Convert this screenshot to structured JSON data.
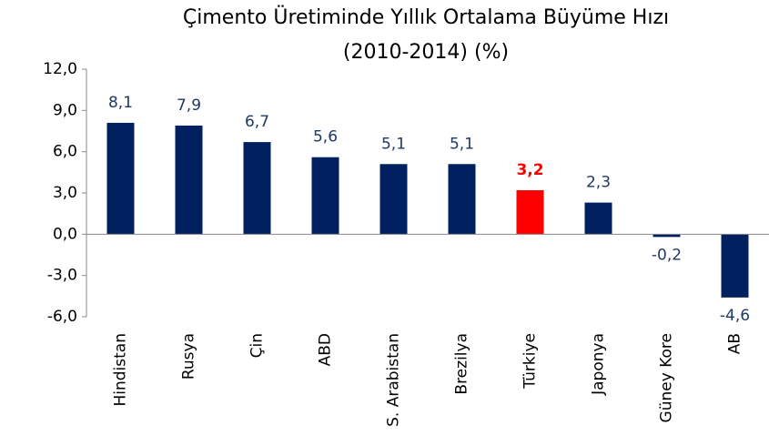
{
  "chart_data": {
    "type": "bar",
    "title": [
      "Çimento Üretiminde Yıllık Ortalama Büyüme Hızı",
      "(2010-2014) (%)"
    ],
    "categories": [
      "Hindistan",
      "Rusya",
      "Çin",
      "ABD",
      "S. Arabistan",
      "Brezilya",
      "Türkiye",
      "Japonya",
      "Güney Kore",
      "AB"
    ],
    "values": [
      8.1,
      7.9,
      6.7,
      5.6,
      5.1,
      5.1,
      3.2,
      2.3,
      -0.2,
      -4.6
    ],
    "value_labels": [
      "8,1",
      "7,9",
      "6,7",
      "5,6",
      "5,1",
      "5,1",
      "3,2",
      "2,3",
      "-0,2",
      "-4,6"
    ],
    "colors": [
      "#002060",
      "#002060",
      "#002060",
      "#002060",
      "#002060",
      "#002060",
      "#ff0000",
      "#002060",
      "#002060",
      "#002060"
    ],
    "label_colors": [
      "#1f3864",
      "#1f3864",
      "#1f3864",
      "#1f3864",
      "#1f3864",
      "#1f3864",
      "#ff0000",
      "#1f3864",
      "#1f3864",
      "#1f3864"
    ],
    "ylim": [
      -6,
      12
    ],
    "yticks": [
      {
        "value": -6,
        "label": "-6,0"
      },
      {
        "value": -3,
        "label": "-3,0"
      },
      {
        "value": 0,
        "label": "0,0"
      },
      {
        "value": 3,
        "label": "3,0"
      },
      {
        "value": 6,
        "label": "6,0"
      },
      {
        "value": 9,
        "label": "9,0"
      },
      {
        "value": 12,
        "label": "12,0"
      }
    ],
    "grid": false
  }
}
